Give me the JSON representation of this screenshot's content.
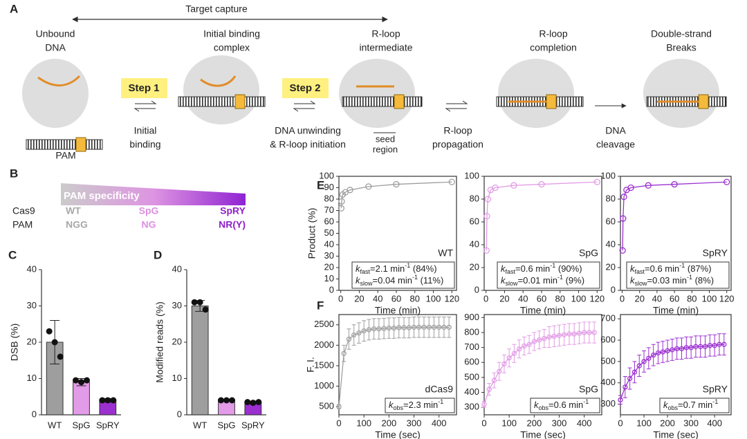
{
  "panel_a": {
    "panel": "A",
    "title": "Target capture",
    "stages": [
      {
        "label": [
          "Unbound",
          "DNA"
        ]
      },
      {
        "label": [
          "Initial binding",
          "complex"
        ]
      },
      {
        "label": [
          "R-loop",
          "intermediate"
        ]
      },
      {
        "label": [
          "R-loop",
          "completion"
        ]
      },
      {
        "label": [
          "Double-strand",
          "Breaks"
        ]
      }
    ],
    "pam": "PAM",
    "steps": [
      "Step 1",
      "Step 2"
    ],
    "transitions": [
      {
        "label": [
          "Initial",
          "binding"
        ]
      },
      {
        "label": [
          "DNA unwinding",
          "& R-loop initiation"
        ]
      },
      {
        "label": [
          "R-loop",
          "propagation"
        ]
      },
      {
        "label": [
          "DNA",
          "cleavage"
        ]
      }
    ],
    "seed": [
      "seed",
      "region"
    ]
  },
  "panel_b": {
    "panel": "B",
    "gradient_label": "PAM specificity",
    "row_labels": [
      "Cas9",
      "PAM"
    ],
    "variants": [
      {
        "name": "WT",
        "pam": "NGG",
        "color": "#a8a8a8"
      },
      {
        "name": "SpG",
        "pam": "NG",
        "color": "#dc8fe0"
      },
      {
        "name": "SpRY",
        "pam": "NR(Y)",
        "color": "#9020c8"
      }
    ]
  },
  "chart_data": [
    {
      "panel": "C",
      "type": "bar",
      "ylabel": "DSB (%)",
      "categories": [
        "WT",
        "SpG",
        "SpRY"
      ],
      "values": [
        20,
        9,
        4
      ],
      "errors": [
        6,
        1,
        0.5
      ],
      "points": [
        [
          23,
          20,
          16
        ],
        [
          9.5,
          9,
          9.5
        ],
        [
          4,
          4,
          4
        ]
      ],
      "colors": [
        "#9e9e9e",
        "#e29be6",
        "#9b2fd0"
      ],
      "ylim": [
        0,
        40
      ],
      "yticks": [
        0,
        10,
        20,
        30,
        40
      ]
    },
    {
      "panel": "D",
      "type": "bar",
      "ylabel": "Modified reads (%)",
      "categories": [
        "WT",
        "SpG",
        "SpRY"
      ],
      "values": [
        30,
        4,
        3.5
      ],
      "errors": [
        1.5,
        0.3,
        0.3
      ],
      "points": [
        [
          31,
          31,
          29
        ],
        [
          4,
          4,
          4
        ],
        [
          3.5,
          3.3,
          3.5
        ]
      ],
      "colors": [
        "#9e9e9e",
        "#e29be6",
        "#9b2fd0"
      ],
      "ylim": [
        0,
        40
      ],
      "yticks": [
        0,
        10,
        20,
        30,
        40
      ]
    },
    {
      "panel": "E",
      "type": "line",
      "ylabel": "Product (%)",
      "xlabel": "Time (min)",
      "label": "WT",
      "color": "#9e9e9e",
      "x": [
        0.5,
        1,
        2,
        5,
        10,
        30,
        60,
        120
      ],
      "values": [
        72,
        78,
        84,
        86,
        88,
        91,
        93,
        95
      ],
      "annotation": [
        {
          "symbol": "k",
          "sub": "fast",
          "value": "=2.1 min",
          "sup": "-1",
          "note": " (84%)"
        },
        {
          "symbol": "k",
          "sub": "slow",
          "value": "=0.04 min",
          "sup": "-1",
          "note": " (11%)"
        }
      ],
      "xlim": [
        -2,
        125
      ],
      "xticks": [
        0,
        20,
        40,
        60,
        80,
        100,
        120
      ],
      "ylim": [
        0,
        100
      ],
      "yticks": [
        0,
        10,
        20,
        30,
        40,
        50,
        60,
        70,
        80,
        90,
        100
      ]
    },
    {
      "type": "line",
      "xlabel": "Time (min)",
      "label": "SpG",
      "color": "#e29be6",
      "x": [
        0.5,
        1,
        2,
        5,
        10,
        30,
        60,
        120
      ],
      "values": [
        35,
        65,
        80,
        88,
        90,
        92,
        93,
        95
      ],
      "annotation": [
        {
          "symbol": "k",
          "sub": "fast",
          "value": "=0.6 min",
          "sup": "-1",
          "note": " (90%)"
        },
        {
          "symbol": "k",
          "sub": "slow",
          "value": "=0.01 min",
          "sup": "-1",
          "note": " (9%)"
        }
      ],
      "xlim": [
        -2,
        125
      ],
      "xticks": [
        0,
        20,
        40,
        60,
        80,
        100,
        120
      ],
      "ylim": [
        0,
        100
      ],
      "yticks": [
        0,
        20,
        40,
        60,
        80,
        100
      ]
    },
    {
      "type": "line",
      "xlabel": "Time (min)",
      "label": "SpRY",
      "color": "#9b2fd0",
      "x": [
        0.5,
        1,
        2,
        5,
        10,
        30,
        60,
        120
      ],
      "values": [
        35,
        63,
        82,
        88,
        90,
        92,
        93,
        95
      ],
      "annotation": [
        {
          "symbol": "k",
          "sub": "fast",
          "value": "=0.6 min",
          "sup": "-1",
          "note": " (87%)"
        },
        {
          "symbol": "k",
          "sub": "slow",
          "value": "=0.03 min",
          "sup": "-1",
          "note": " (8%)"
        }
      ],
      "xlim": [
        -2,
        125
      ],
      "xticks": [
        0,
        20,
        40,
        60,
        80,
        100,
        120
      ],
      "ylim": [
        0,
        100
      ],
      "yticks": [
        0,
        20,
        40,
        60,
        80,
        100
      ]
    },
    {
      "panel": "F",
      "type": "errorline",
      "ylabel": "F. I.",
      "xlabel": "Time (sec)",
      "label": "dCas9",
      "color": "#9e9e9e",
      "x": [
        0,
        20,
        40,
        60,
        80,
        100,
        120,
        140,
        160,
        180,
        200,
        220,
        240,
        260,
        280,
        300,
        320,
        340,
        360,
        380,
        400,
        420,
        440
      ],
      "values": [
        500,
        1800,
        2150,
        2250,
        2300,
        2350,
        2380,
        2400,
        2400,
        2410,
        2420,
        2420,
        2430,
        2430,
        2430,
        2440,
        2440,
        2440,
        2440,
        2440,
        2440,
        2440,
        2440
      ],
      "errors": [
        50,
        200,
        250,
        250,
        250,
        250,
        250,
        250,
        250,
        250,
        250,
        250,
        250,
        250,
        250,
        250,
        250,
        250,
        250,
        250,
        250,
        250,
        250
      ],
      "annotation": [
        {
          "symbol": "k",
          "sub": "obs",
          "value": "=2.3 min",
          "sup": "-1"
        }
      ],
      "xlim": [
        0,
        470
      ],
      "xticks": [
        0,
        100,
        200,
        300,
        400
      ],
      "ylim": [
        300,
        2750
      ],
      "yticks": [
        500,
        1000,
        1500,
        2000,
        2500
      ]
    },
    {
      "type": "errorline",
      "xlabel": "Time (sec)",
      "label": "SpG",
      "color": "#e29be6",
      "x": [
        0,
        20,
        40,
        60,
        80,
        100,
        120,
        140,
        160,
        180,
        200,
        220,
        240,
        260,
        280,
        300,
        320,
        340,
        360,
        380,
        400,
        420,
        440
      ],
      "values": [
        320,
        420,
        480,
        540,
        590,
        630,
        660,
        690,
        710,
        720,
        740,
        750,
        760,
        770,
        775,
        780,
        785,
        790,
        790,
        795,
        800,
        800,
        800
      ],
      "errors": [
        20,
        40,
        50,
        60,
        60,
        60,
        60,
        60,
        60,
        60,
        60,
        60,
        60,
        70,
        70,
        70,
        70,
        70,
        70,
        70,
        70,
        70,
        70
      ],
      "annotation": [
        {
          "symbol": "k",
          "sub": "obs",
          "value": "=0.6 min",
          "sup": "-1"
        }
      ],
      "xlim": [
        0,
        470
      ],
      "xticks": [
        0,
        100,
        200,
        300,
        400
      ],
      "ylim": [
        250,
        920
      ],
      "yticks": [
        300,
        400,
        500,
        600,
        700,
        800,
        900
      ]
    },
    {
      "type": "errorline",
      "xlabel": "Time (sec)",
      "label": "SpRY",
      "color": "#9b2fd0",
      "x": [
        0,
        20,
        40,
        60,
        80,
        100,
        120,
        140,
        160,
        180,
        200,
        220,
        240,
        260,
        280,
        300,
        320,
        340,
        360,
        380,
        400,
        420,
        440
      ],
      "values": [
        320,
        380,
        420,
        450,
        480,
        500,
        515,
        530,
        540,
        545,
        550,
        555,
        560,
        560,
        565,
        565,
        570,
        570,
        570,
        575,
        575,
        580,
        580
      ],
      "errors": [
        20,
        50,
        50,
        50,
        50,
        50,
        50,
        50,
        50,
        50,
        50,
        50,
        50,
        50,
        50,
        50,
        50,
        50,
        50,
        50,
        50,
        50,
        50
      ],
      "annotation": [
        {
          "symbol": "k",
          "sub": "obs",
          "value": "=0.7 min",
          "sup": "-1"
        }
      ],
      "xlim": [
        0,
        470
      ],
      "xticks": [
        0,
        100,
        200,
        300,
        400
      ],
      "ylim": [
        250,
        720
      ],
      "yticks": [
        300,
        400,
        500,
        600,
        700
      ]
    }
  ]
}
